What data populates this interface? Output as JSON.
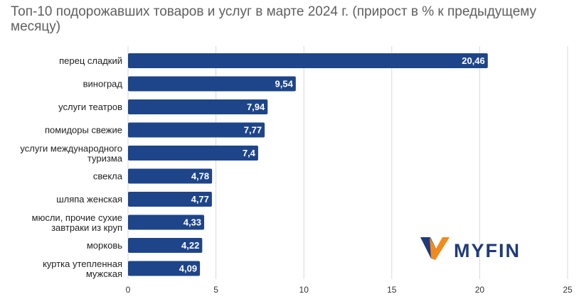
{
  "chart_data": {
    "type": "bar",
    "orientation": "horizontal",
    "title": "Топ-10 подорожавших товаров и услуг в марте 2024 г. (прирост в % к предыдущему месяцу)",
    "categories": [
      [
        "перец сладкий"
      ],
      [
        "виноград"
      ],
      [
        "услуги театров"
      ],
      [
        "помидоры свежие"
      ],
      [
        "услуги международного",
        "туризма"
      ],
      [
        "свекла"
      ],
      [
        "шляпа женская"
      ],
      [
        "мюсли, прочие сухие",
        "завтраки из круп"
      ],
      [
        "морковь"
      ],
      [
        "куртка утепленная",
        "мужская"
      ]
    ],
    "values": [
      20.46,
      9.54,
      7.94,
      7.77,
      7.4,
      4.78,
      4.77,
      4.33,
      4.22,
      4.09
    ],
    "value_labels": [
      "20,46",
      "9,54",
      "7,94",
      "7,77",
      "7,4",
      "4,78",
      "4,77",
      "4,33",
      "4,22",
      "4,09"
    ],
    "xlim": [
      0,
      25
    ],
    "xticks": [
      0,
      5,
      10,
      15,
      20,
      25
    ],
    "grid": true,
    "bar_color": "#1e4589"
  },
  "logo": {
    "text": "MYFIN",
    "colors": [
      "#f28a1e",
      "#1f3a7a"
    ]
  }
}
